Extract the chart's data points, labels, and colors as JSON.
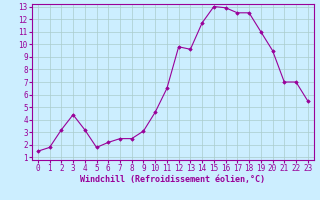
{
  "x": [
    0,
    1,
    2,
    3,
    4,
    5,
    6,
    7,
    8,
    9,
    10,
    11,
    12,
    13,
    14,
    15,
    16,
    17,
    18,
    19,
    20,
    21,
    22,
    23
  ],
  "y": [
    1.5,
    1.8,
    3.2,
    4.4,
    3.2,
    1.8,
    2.2,
    2.5,
    2.5,
    3.1,
    4.6,
    6.5,
    9.8,
    9.6,
    11.7,
    13.0,
    12.9,
    12.5,
    12.5,
    11.0,
    9.5,
    7.0,
    7.0,
    5.5
  ],
  "line_color": "#990099",
  "marker": "D",
  "marker_size": 1.8,
  "bg_color": "#cceeff",
  "grid_color": "#aacccc",
  "xlabel": "Windchill (Refroidissement éolien,°C)",
  "xlabel_fontsize": 6,
  "xlabel_color": "#990099",
  "ylim_min": 1,
  "ylim_max": 13,
  "xlim_min": 0,
  "xlim_max": 23,
  "yticks": [
    1,
    2,
    3,
    4,
    5,
    6,
    7,
    8,
    9,
    10,
    11,
    12,
    13
  ],
  "xticks": [
    0,
    1,
    2,
    3,
    4,
    5,
    6,
    7,
    8,
    9,
    10,
    11,
    12,
    13,
    14,
    15,
    16,
    17,
    18,
    19,
    20,
    21,
    22,
    23
  ],
  "tick_fontsize": 5.5,
  "tick_color": "#990099",
  "linewidth": 0.8
}
